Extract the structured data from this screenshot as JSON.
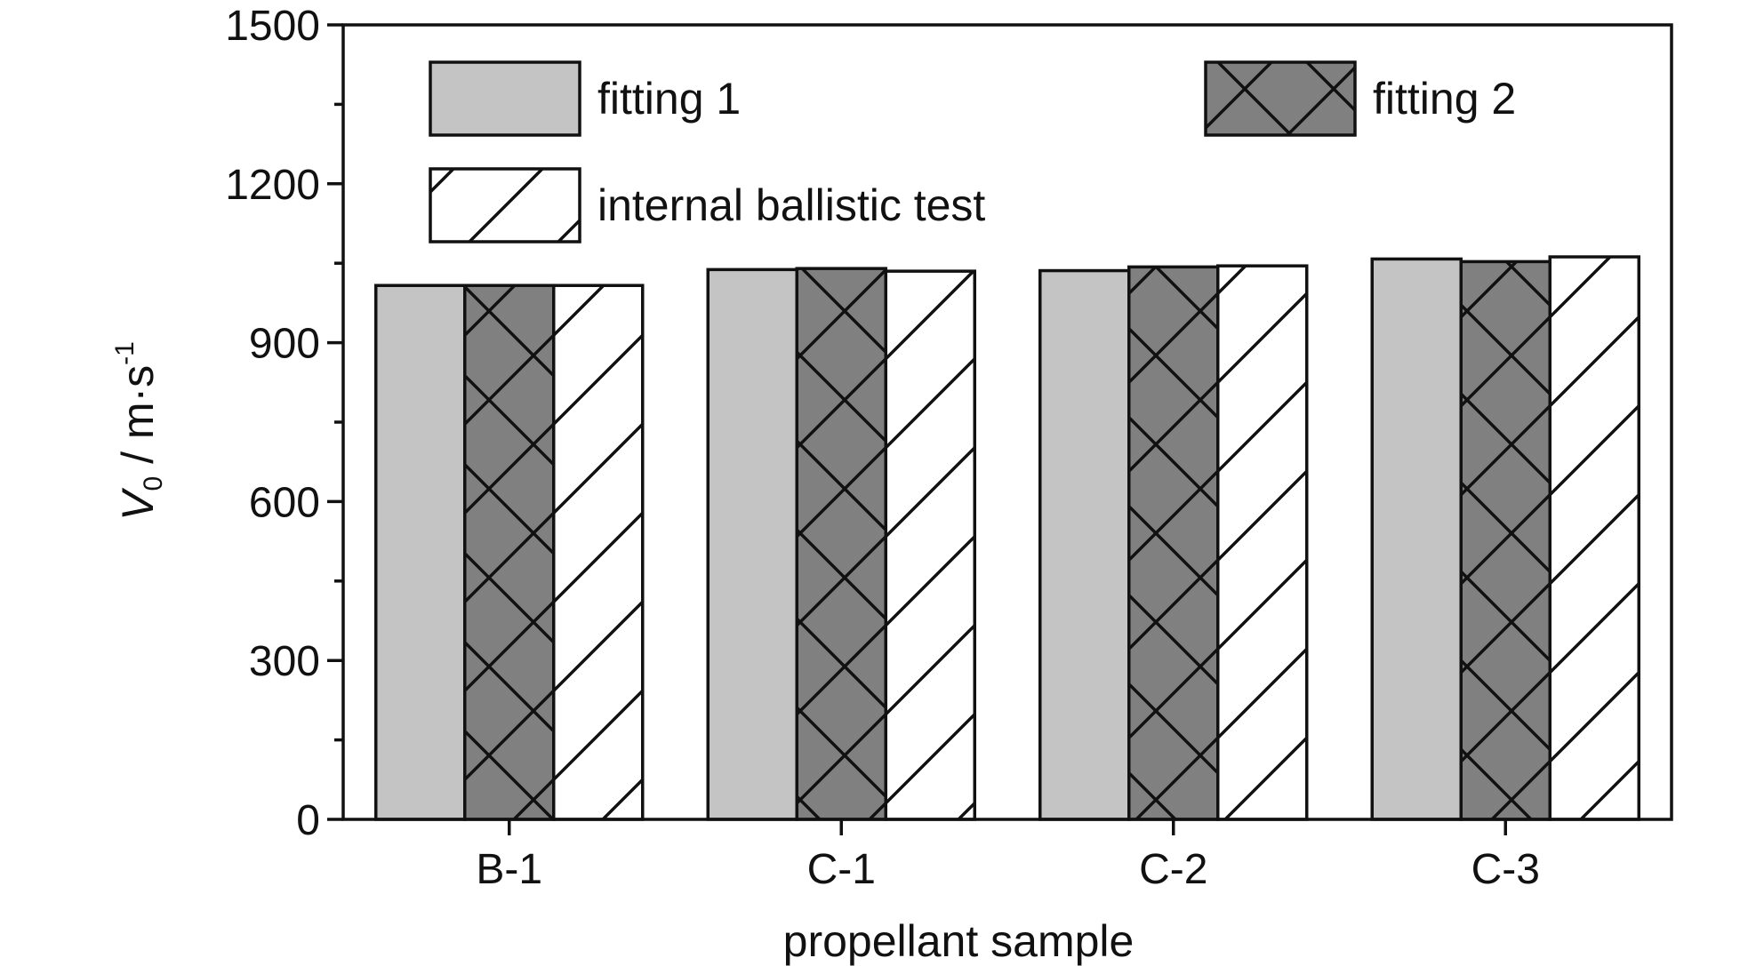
{
  "chart_data": {
    "type": "bar",
    "title": "",
    "xlabel": "propellant sample",
    "ylabel": {
      "symbol": "V",
      "subscript": "0",
      "unit": " / m·s",
      "superscript": "-1"
    },
    "ylim": [
      0,
      1500
    ],
    "yticks": [
      0,
      300,
      600,
      900,
      1200,
      1500
    ],
    "ytick_labels": [
      "0",
      "300",
      "600",
      "900",
      "1200",
      "1500"
    ],
    "categories": [
      "B-1",
      "C-1",
      "C-2",
      "C-3"
    ],
    "series": [
      {
        "name": "fitting 1",
        "values": [
          1008,
          1038,
          1036,
          1058
        ],
        "color": "#c4c4c4",
        "pattern": "solid"
      },
      {
        "name": "fitting 2",
        "values": [
          1008,
          1040,
          1043,
          1053
        ],
        "color": "#808080",
        "pattern": "crosshatch"
      },
      {
        "name": "internal ballistic test",
        "values": [
          1008,
          1035,
          1045,
          1062
        ],
        "color": "#ffffff",
        "pattern": "diagonal"
      }
    ],
    "legend": {
      "placement": "top-inside",
      "columns": 2
    },
    "grid": false
  }
}
